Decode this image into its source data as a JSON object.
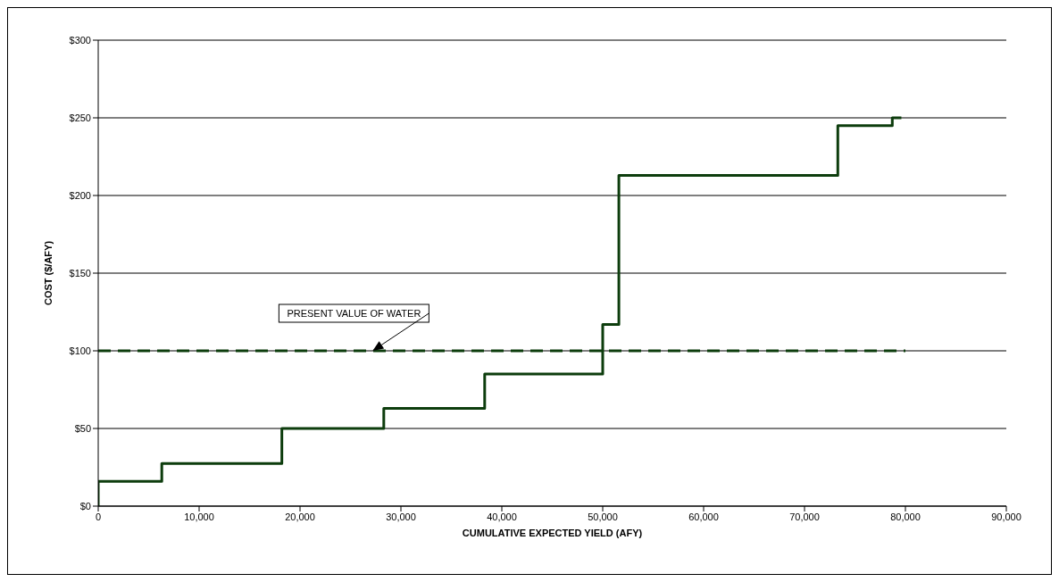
{
  "chart_data": {
    "type": "step",
    "xlabel": "CUMULATIVE EXPECTED YIELD (AFY)",
    "ylabel": "COST ($/AFY)",
    "series": [
      {
        "color": "#0d3d0d",
        "x": [
          0,
          0,
          6300,
          18200,
          28300,
          38300,
          50000,
          51600,
          73300,
          78700,
          79600
        ],
        "values": [
          0,
          16,
          27.5,
          50,
          63,
          85,
          117,
          213,
          245,
          250,
          250
        ]
      },
      {
        "type": "line",
        "color": "#0d3d0d",
        "line_style": "dashed",
        "x": [
          0,
          80000
        ],
        "values": [
          100,
          100
        ]
      }
    ],
    "annotations": [
      "PRESENT VALUE OF WATER"
    ],
    "xlim": [
      0,
      90000
    ],
    "xticks": [
      0,
      {
        "value": 10000,
        "label": "10,000"
      },
      {
        "value": 20000,
        "label": "20,000"
      },
      {
        "value": 30000,
        "label": "30,000"
      },
      {
        "value": 40000,
        "label": "40,000"
      },
      {
        "value": 50000,
        "label": "50,000"
      },
      {
        "value": 60000,
        "label": "60,000"
      },
      {
        "value": 70000,
        "label": "70,000"
      },
      {
        "value": 80000,
        "label": "80,000"
      },
      {
        "value": 90000,
        "label": "90,000"
      }
    ],
    "ylim": [
      0,
      300
    ],
    "yticks": [
      {
        "value": 0,
        "label": "$0"
      },
      {
        "value": 50,
        "label": "$50"
      },
      {
        "value": 100,
        "label": "$100"
      },
      {
        "value": 150,
        "label": "$150"
      },
      {
        "value": 200,
        "label": "$200"
      },
      {
        "value": 250,
        "label": "$250"
      },
      {
        "value": 300,
        "label": "$300"
      }
    ],
    "grid": "y",
    "marker": "none"
  }
}
